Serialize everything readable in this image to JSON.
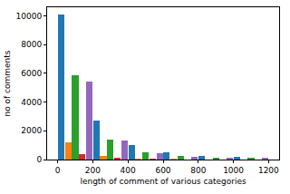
{
  "chart_data": {
    "type": "histogram",
    "x_label": "length of comment of various categories",
    "y_label": "no of comments",
    "bins": [
      0,
      200,
      400,
      600,
      800,
      1000,
      1200
    ],
    "series": [
      {
        "color": "#1f77b4",
        "values": [
          10100,
          2700,
          1000,
          480,
          250,
          200
        ]
      },
      {
        "color": "#ff7f0e",
        "values": [
          1200,
          250,
          80,
          40,
          20,
          15
        ]
      },
      {
        "color": "#2ca02c",
        "values": [
          5850,
          1400,
          480,
          250,
          150,
          120
        ]
      },
      {
        "color": "#d62728",
        "values": [
          350,
          100,
          40,
          20,
          10,
          10
        ]
      },
      {
        "color": "#9467bd",
        "values": [
          5450,
          1300,
          450,
          220,
          130,
          110
        ]
      }
    ],
    "xlim": [
      -60,
      1260
    ],
    "xticks": [
      0,
      200,
      400,
      600,
      800,
      1000,
      1200
    ],
    "ylim": [
      0,
      10600
    ],
    "yticks": [
      0,
      2000,
      4000,
      6000,
      8000,
      10000
    ],
    "grid": false
  }
}
